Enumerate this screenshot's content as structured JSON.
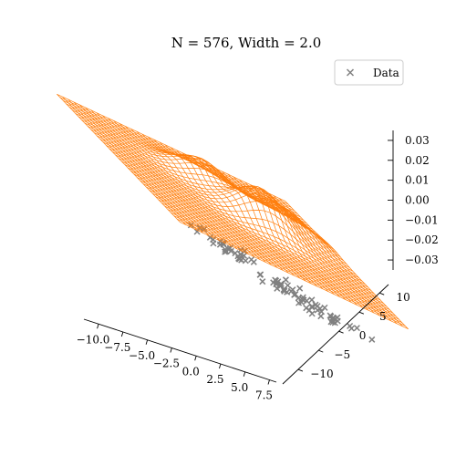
{
  "chart_data": {
    "type": "surface",
    "title": "N = 576, Width = 2.0",
    "xlabel": "",
    "ylabel": "",
    "zlabel": "",
    "x_ticks": [
      "−10.0",
      "−7.5",
      "−5.0",
      "−2.5",
      "0.0",
      "2.5",
      "5.0",
      "7.5"
    ],
    "y_ticks": [
      "−10",
      "−5",
      "0",
      "5",
      "10"
    ],
    "z_ticks": [
      "−0.03",
      "−0.02",
      "−0.01",
      "0.00",
      "0.01",
      "0.02",
      "0.03"
    ],
    "xlim": [
      -12,
      8
    ],
    "ylim": [
      -14,
      12
    ],
    "zlim": [
      -0.035,
      0.035
    ],
    "legend": {
      "position": "top-right",
      "entries": [
        {
          "label": "Data",
          "marker": "x",
          "color": "#808080"
        }
      ]
    },
    "surface": {
      "color": "#ff7f0e",
      "grid_x": [
        -12,
        8
      ],
      "grid_y": [
        -14,
        12
      ],
      "peaks": [
        {
          "x": 0.5,
          "y": -1.0,
          "height": 0.02
        },
        {
          "x": -2.0,
          "y": 5.0,
          "height": 0.0125
        },
        {
          "x": 4.0,
          "y": 2.0,
          "height": 0.01
        }
      ]
    },
    "scatter": {
      "name": "Data",
      "color": "#808080",
      "clusters": [
        {
          "x": 3.0,
          "y": -1.0,
          "z": -0.03,
          "count": 30
        },
        {
          "x": 0.0,
          "y": 4.0,
          "z": -0.03,
          "count": 30
        },
        {
          "x": 5.5,
          "y": -3.5,
          "z": -0.03,
          "count": 30
        }
      ]
    }
  }
}
